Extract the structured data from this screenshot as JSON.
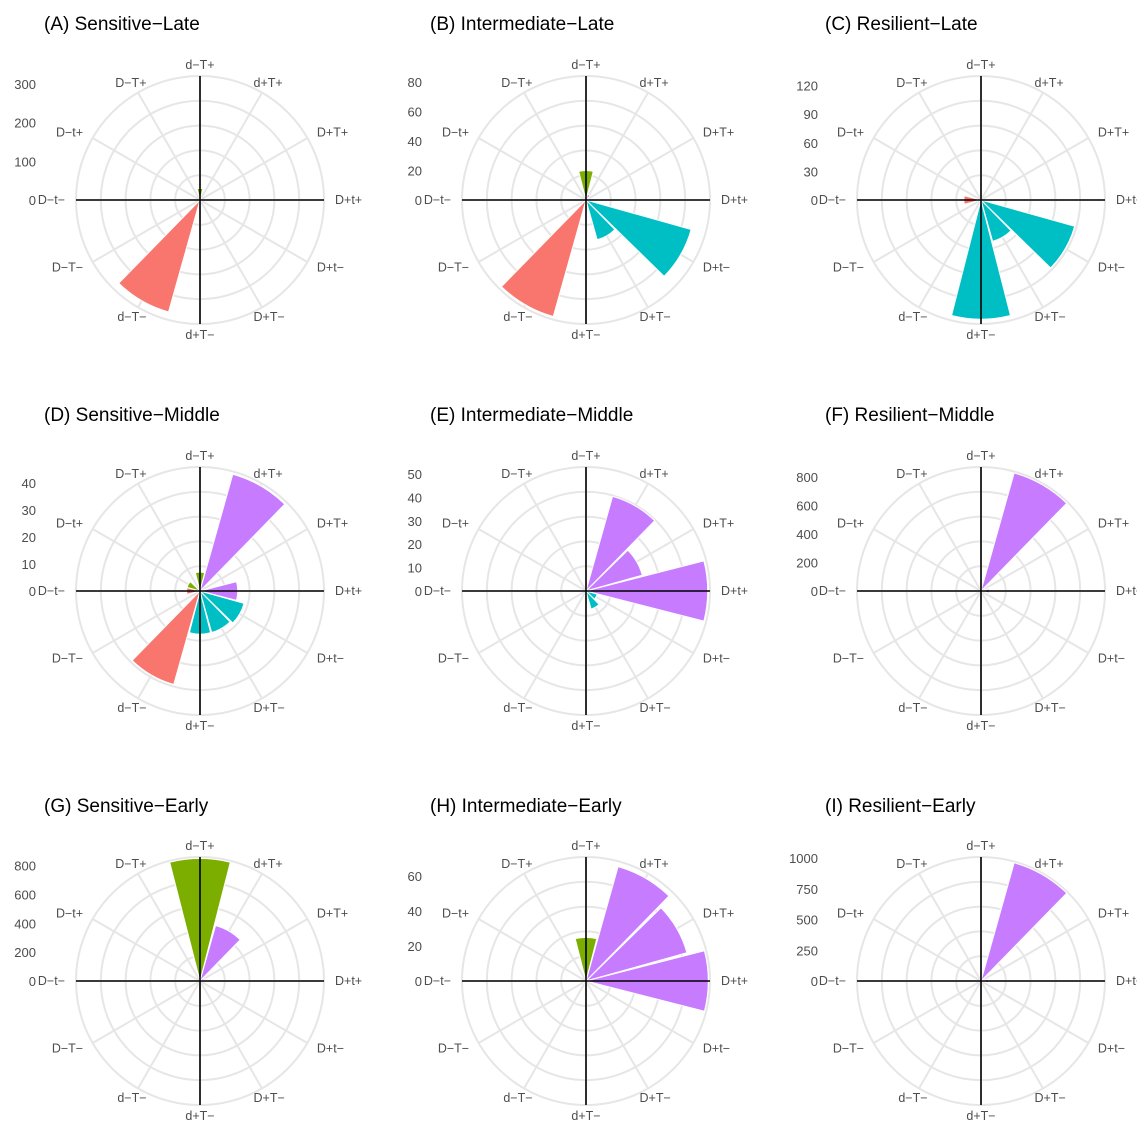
{
  "colors": {
    "d-T+": "#7CAE00",
    "d+T+": "#C77CFF",
    "d-T-": "#F8766D",
    "d+T-": "#00BFC4"
  },
  "chart_data": [
    {
      "type": "rose",
      "title": "(A) Sensitive−Late",
      "categories": [
        "d−T+",
        "d+T+",
        "D+T+",
        "D+t+",
        "D+t−",
        "D+T−",
        "d+T−",
        "d−T−",
        "D−T−",
        "D−t−",
        "D−t+",
        "D−T+"
      ],
      "fill_groups": [
        "d-T+",
        "d+T+",
        "d+T+",
        "d+T+",
        "d+T-",
        "d+T-",
        "d+T-",
        "d-T-",
        "d-T-",
        "d-T-",
        "d-T+",
        "d-T+"
      ],
      "values": [
        30,
        5,
        0,
        0,
        5,
        0,
        0,
        300,
        0,
        0,
        0,
        0
      ],
      "yticks": [
        0,
        100,
        200,
        300
      ],
      "ymax": 320
    },
    {
      "type": "rose",
      "title": "(B) Intermediate−Late",
      "categories": [
        "d−T+",
        "d+T+",
        "D+T+",
        "D+t+",
        "D+t−",
        "D+T−",
        "d+T−",
        "d−T−",
        "D−T−",
        "D−t−",
        "D−t+",
        "D−T+"
      ],
      "fill_groups": [
        "d-T+",
        "d+T+",
        "d+T+",
        "d+T+",
        "d+T-",
        "d+T-",
        "d+T-",
        "d-T-",
        "d-T-",
        "d-T-",
        "d-T+",
        "d-T+"
      ],
      "values": [
        20,
        4,
        2,
        2,
        74,
        28,
        0,
        82,
        0,
        2,
        0,
        0
      ],
      "yticks": [
        0,
        20,
        40,
        60,
        80
      ],
      "ymax": 84
    },
    {
      "type": "rose",
      "title": "(C) Resilient−Late",
      "categories": [
        "d−T+",
        "d+T+",
        "D+T+",
        "D+t+",
        "D+t−",
        "D+T−",
        "d+T−",
        "d−T−",
        "D−T−",
        "D−t−",
        "D−t+",
        "D−T+"
      ],
      "fill_groups": [
        "d-T+",
        "d+T+",
        "d+T+",
        "d+T+",
        "d+T-",
        "d+T-",
        "d+T-",
        "d-T-",
        "d-T-",
        "d-T-",
        "d-T+",
        "d-T+"
      ],
      "values": [
        0,
        0,
        0,
        0,
        102,
        45,
        125,
        2,
        0,
        18,
        0,
        0
      ],
      "yticks": [
        0,
        30,
        60,
        90,
        120
      ],
      "ymax": 130
    },
    {
      "type": "rose",
      "title": "(D) Sensitive−Middle",
      "categories": [
        "d−T+",
        "d+T+",
        "D+T+",
        "D+t+",
        "D+t−",
        "D+T−",
        "d+T−",
        "d−T−",
        "D−T−",
        "D−t−",
        "D−t+",
        "D−T+"
      ],
      "fill_groups": [
        "d-T+",
        "d+T+",
        "d+T+",
        "d+T+",
        "d+T-",
        "d+T-",
        "d+T-",
        "d-T-",
        "d-T-",
        "d-T-",
        "d-T+",
        "d-T+"
      ],
      "values": [
        7,
        45,
        0,
        14,
        17,
        16,
        16,
        36,
        0,
        5,
        5,
        0
      ],
      "yticks": [
        0,
        10,
        20,
        30,
        40
      ],
      "ymax": 46
    },
    {
      "type": "rose",
      "title": "(E) Intermediate−Middle",
      "categories": [
        "d−T+",
        "d+T+",
        "D+T+",
        "D+t+",
        "D+t−",
        "D+T−",
        "d+T−",
        "d−T−",
        "D−T−",
        "D−t−",
        "D−t+",
        "D−T+"
      ],
      "fill_groups": [
        "d-T+",
        "d+T+",
        "d+T+",
        "d+T+",
        "d+T-",
        "d+T-",
        "d+T-",
        "d-T-",
        "d-T-",
        "d-T-",
        "d-T+",
        "d-T+"
      ],
      "values": [
        0,
        42,
        25,
        52,
        5,
        8,
        0,
        0,
        0,
        0,
        0,
        0
      ],
      "yticks": [
        0,
        10,
        20,
        30,
        40,
        50
      ],
      "ymax": 53
    },
    {
      "type": "rose",
      "title": "(F) Resilient−Middle",
      "categories": [
        "d−T+",
        "d+T+",
        "D+T+",
        "D+t+",
        "D+t−",
        "D+T−",
        "d+T−",
        "d−T−",
        "D−T−",
        "D−t−",
        "D−t+",
        "D−T+"
      ],
      "fill_groups": [
        "d-T+",
        "d+T+",
        "d+T+",
        "d+T+",
        "d+T-",
        "d+T-",
        "d+T-",
        "d-T-",
        "d-T-",
        "d-T-",
        "d-T+",
        "d-T+"
      ],
      "values": [
        0,
        860,
        25,
        60,
        10,
        0,
        0,
        0,
        0,
        0,
        0,
        0
      ],
      "yticks": [
        0,
        200,
        400,
        600,
        800
      ],
      "ymax": 870
    },
    {
      "type": "rose",
      "title": "(G) Sensitive−Early",
      "categories": [
        "d−T+",
        "d+T+",
        "D+T+",
        "D+t+",
        "D+t−",
        "D+T−",
        "d+T−",
        "d−T−",
        "D−T−",
        "D−t−",
        "D−t+",
        "D−T+"
      ],
      "fill_groups": [
        "d-T+",
        "d+T+",
        "d+T+",
        "d+T+",
        "d+T-",
        "d+T-",
        "d+T-",
        "d-T-",
        "d-T-",
        "d-T-",
        "d-T+",
        "d-T+"
      ],
      "values": [
        850,
        400,
        30,
        0,
        0,
        0,
        0,
        0,
        0,
        0,
        0,
        0
      ],
      "yticks": [
        0,
        200,
        400,
        600,
        800
      ],
      "ymax": 860
    },
    {
      "type": "rose",
      "title": "(H) Intermediate−Early",
      "categories": [
        "d−T+",
        "d+T+",
        "D+T+",
        "D+t+",
        "D+t−",
        "D+T−",
        "d+T−",
        "d−T−",
        "D−T−",
        "D−t−",
        "D−t+",
        "D−T+"
      ],
      "fill_groups": [
        "d-T+",
        "d+T+",
        "d+T+",
        "d+T+",
        "d+T-",
        "d+T-",
        "d+T-",
        "d-T-",
        "d-T-",
        "d-T-",
        "d-T+",
        "d-T+"
      ],
      "values": [
        25,
        68,
        60,
        70,
        0,
        0,
        0,
        2,
        0,
        0,
        0,
        0
      ],
      "yticks": [
        0,
        20,
        40,
        60
      ],
      "ymax": 71
    },
    {
      "type": "rose",
      "title": "(I) Resilient−Early",
      "categories": [
        "d−T+",
        "d+T+",
        "D+T+",
        "D+t+",
        "D+t−",
        "D+T−",
        "d+T−",
        "d−T−",
        "D−T−",
        "D−t−",
        "D−t+",
        "D−T+"
      ],
      "fill_groups": [
        "d-T+",
        "d+T+",
        "d+T+",
        "d+T+",
        "d+T-",
        "d+T-",
        "d+T-",
        "d-T-",
        "d-T-",
        "d-T-",
        "d-T+",
        "d-T+"
      ],
      "values": [
        0,
        1000,
        0,
        60,
        0,
        0,
        0,
        0,
        0,
        0,
        0,
        0
      ],
      "yticks": [
        0,
        250,
        500,
        750,
        1000
      ],
      "ymax": 1010
    }
  ]
}
